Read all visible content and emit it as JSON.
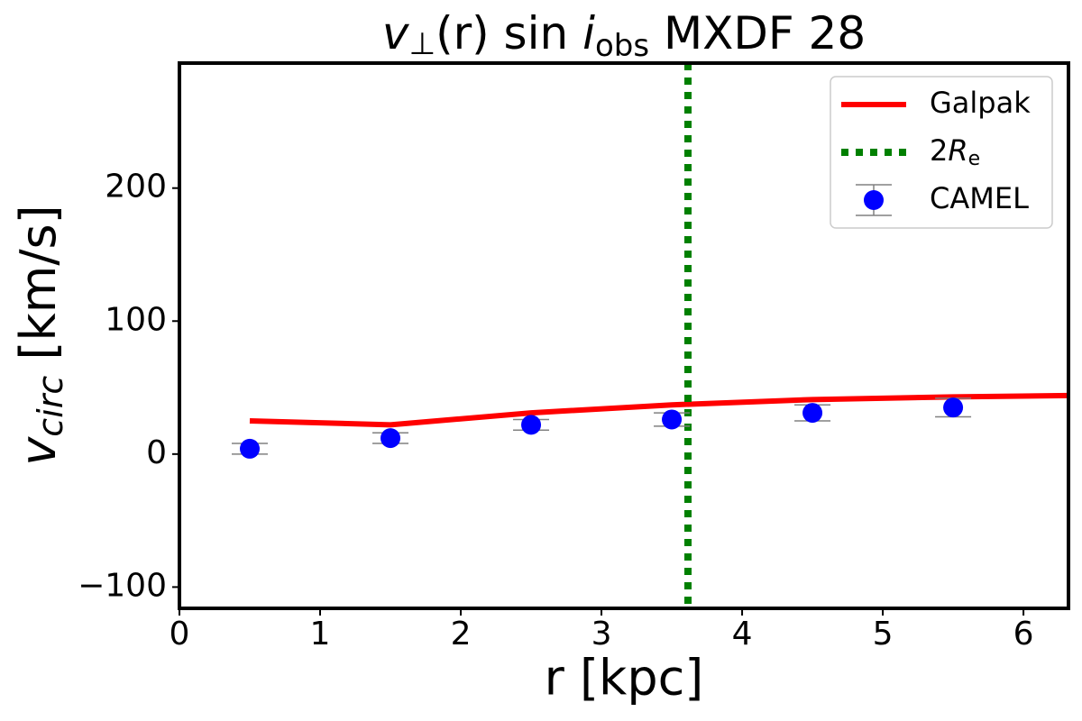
{
  "chart_data": {
    "type": "line",
    "title": [
      "v",
      "⊥",
      "(r) sin ",
      "i",
      "obs",
      " MXDF 28"
    ],
    "xlabel": "r [kpc]",
    "ylabel": [
      "v",
      "circ",
      " [km/s]"
    ],
    "xlim": [
      0,
      6.32
    ],
    "ylim": [
      -116,
      294
    ],
    "xticks": [
      0,
      1,
      2,
      3,
      4,
      5,
      6
    ],
    "yticks": [
      {
        "value": -100,
        "label": "−100"
      },
      0,
      100,
      200
    ],
    "legend": "upper right",
    "series": [
      {
        "name": "Galpak",
        "kind": "line",
        "color": "#ff0000",
        "x": [
          0.5,
          1.5,
          2.5,
          3.5,
          4.5,
          5.5,
          6.32
        ],
        "values": [
          25,
          22,
          31,
          37,
          41,
          43,
          44
        ]
      },
      {
        "name": [
          "2",
          "R",
          "e"
        ],
        "kind": "vline",
        "color": "#008000",
        "x": 3.615
      },
      {
        "name": "CAMEL",
        "kind": "errorbar",
        "color": "#0000ff",
        "ecolor": "#808080",
        "x": [
          0.5,
          1.5,
          2.5,
          3.5,
          4.5,
          5.5
        ],
        "values": [
          4,
          12,
          22,
          26,
          31,
          35
        ],
        "errors": [
          4,
          4,
          4,
          5,
          6,
          7
        ]
      }
    ]
  }
}
